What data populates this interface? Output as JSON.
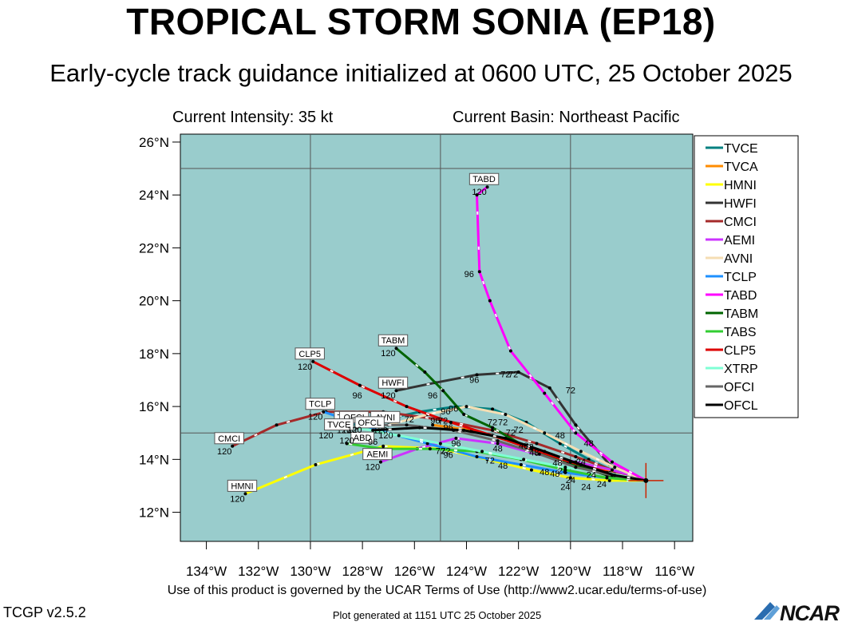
{
  "header": {
    "title": "TROPICAL STORM SONIA (EP18)",
    "subtitle": "Early-cycle track guidance initialized at 0600 UTC, 25 October 2025",
    "intensity": "Current Intensity: 35 kt",
    "basin": "Current Basin: Northeast Pacific"
  },
  "footer": {
    "terms": "Use of this product is governed by the UCAR Terms of Use (http://www2.ucar.edu/terms-of-use)",
    "version": "TCGP v2.5.2",
    "generated": "Plot generated at 1151 UTC   25 October 2025",
    "logo": "NCAR"
  },
  "colors": {
    "ocean": "#99cccc",
    "grid": "#555555"
  },
  "chart_data": {
    "type": "line",
    "xlim": [
      -135,
      -115.3
    ],
    "ylim": [
      10.9,
      26.3
    ],
    "x_ticks": [
      -134,
      -132,
      -130,
      -128,
      -126,
      -124,
      -122,
      -120,
      -118,
      -116
    ],
    "x_tick_labels": [
      "134°W",
      "132°W",
      "130°W",
      "128°W",
      "126°W",
      "124°W",
      "122°W",
      "120°W",
      "118°W",
      "116°W"
    ],
    "y_ticks": [
      12,
      14,
      16,
      18,
      20,
      22,
      24,
      26
    ],
    "y_tick_labels": [
      "12°N",
      "14°N",
      "16°N",
      "18°N",
      "20°N",
      "22°N",
      "24°N",
      "26°N"
    ],
    "grid_lon": [
      -130,
      -125,
      -120
    ],
    "grid_lat": [
      15,
      25
    ],
    "current_position": [
      -117.1,
      13.2
    ],
    "legend_position": "right",
    "series": [
      {
        "name": "TVCE",
        "color": "#008080",
        "end_label": "TVCE",
        "lon": [
          -117.1,
          -118.2,
          -119.3,
          -120.4,
          -121.7,
          -123.0,
          -124.4,
          -125.8,
          -127.2,
          -128.4
        ],
        "lat": [
          13.2,
          13.5,
          14.0,
          14.6,
          15.4,
          15.9,
          16.0,
          15.8,
          15.5,
          15.3
        ],
        "hour_labels": [
          {
            "t": "48",
            "lon": -120.4,
            "lat": 14.8
          },
          {
            "t": "72",
            "lon": -122.6,
            "lat": 15.3
          },
          {
            "t": "96",
            "lon": -124.8,
            "lat": 15.7
          }
        ]
      },
      {
        "name": "TVCA",
        "color": "#ff8c00",
        "end_label": "",
        "lon": [
          -117.1,
          -118.3,
          -119.6,
          -120.9,
          -122.3,
          -123.8,
          -125.3
        ],
        "lat": [
          13.2,
          13.5,
          13.8,
          14.2,
          14.7,
          15.1,
          15.3
        ],
        "hour_labels": []
      },
      {
        "name": "HMNI",
        "color": "#ffff00",
        "end_label": "HMNI",
        "lon": [
          -117.1,
          -118.5,
          -120.0,
          -121.5,
          -123.2,
          -125.0,
          -127.2,
          -129.8,
          -132.5
        ],
        "lat": [
          13.2,
          13.2,
          13.3,
          13.6,
          14.0,
          14.4,
          14.5,
          13.8,
          12.7
        ],
        "hour_labels": [
          {
            "t": "24",
            "lon": -120.0,
            "lat": 13.1
          },
          {
            "t": "72",
            "lon": -125.0,
            "lat": 14.2
          }
        ]
      },
      {
        "name": "HWFI",
        "color": "#333333",
        "end_label": "HWFI",
        "lon": [
          -117.1,
          -118.5,
          -119.8,
          -120.8,
          -122.0,
          -123.6,
          -125.2,
          -126.7
        ],
        "lat": [
          13.2,
          13.8,
          15.3,
          16.7,
          17.3,
          17.2,
          16.9,
          16.6
        ],
        "hour_labels": [
          {
            "t": "48",
            "lon": -119.3,
            "lat": 14.5
          },
          {
            "t": "72",
            "lon": -120.0,
            "lat": 16.5
          },
          {
            "t": "72",
            "lon": -122.5,
            "lat": 17.1
          },
          {
            "t": "96",
            "lon": -123.7,
            "lat": 16.9
          },
          {
            "t": "96",
            "lon": -125.3,
            "lat": 16.3
          }
        ]
      },
      {
        "name": "CMCI",
        "color": "#a52a2a",
        "end_label": "CMCI",
        "lon": [
          -117.1,
          -118.4,
          -119.8,
          -121.3,
          -123.0,
          -125.0,
          -127.2,
          -129.4,
          -131.3,
          -133.0
        ],
        "lat": [
          13.2,
          13.6,
          14.1,
          14.6,
          15.1,
          15.5,
          15.8,
          15.8,
          15.3,
          14.5
        ],
        "hour_labels": []
      },
      {
        "name": "AEMI",
        "color": "#cc33ff",
        "end_label": "AEMI",
        "lon": [
          -117.1,
          -118.4,
          -119.8,
          -121.3,
          -122.8,
          -124.4,
          -125.9,
          -127.3
        ],
        "lat": [
          13.2,
          13.6,
          13.9,
          14.2,
          14.6,
          14.8,
          14.4,
          13.9
        ],
        "hour_labels": [
          {
            "t": "96",
            "lon": -124.4,
            "lat": 14.5
          }
        ]
      },
      {
        "name": "AVNI",
        "color": "#f5deb3",
        "end_label": "AVNI",
        "lon": [
          -117.1,
          -118.3,
          -119.6,
          -121.0,
          -122.5,
          -124.0,
          -125.5,
          -127.0
        ],
        "lat": [
          13.2,
          13.7,
          14.3,
          15.0,
          15.7,
          16.0,
          15.7,
          15.3
        ],
        "hour_labels": [
          {
            "t": "72",
            "lon": -126.2,
            "lat": 15.4
          }
        ]
      },
      {
        "name": "TCLP",
        "color": "#1e90ff",
        "end_label": "TCLP",
        "lon": [
          -117.1,
          -118.6,
          -120.2,
          -121.9,
          -123.6,
          -125.5,
          -127.4,
          -129.5
        ],
        "lat": [
          13.2,
          13.3,
          13.5,
          13.8,
          14.1,
          14.6,
          15.1,
          15.8
        ],
        "hour_labels": []
      },
      {
        "name": "TABD",
        "color": "#ff00ff",
        "end_label": "TABD",
        "lon": [
          -117.1,
          -118.4,
          -119.8,
          -121.0,
          -122.3,
          -123.1,
          -123.5,
          -123.6,
          -123.2
        ],
        "lat": [
          13.2,
          13.9,
          15.0,
          16.5,
          18.1,
          20.0,
          21.1,
          24.0,
          24.3
        ],
        "hour_labels": [
          {
            "t": "96",
            "lon": -123.9,
            "lat": 20.9
          },
          {
            "t": "72",
            "lon": -122.2,
            "lat": 17.1
          }
        ]
      },
      {
        "name": "TABM",
        "color": "#006400",
        "end_label": "TABM",
        "lon": [
          -117.1,
          -118.6,
          -120.1,
          -121.6,
          -123.0,
          -124.1,
          -124.9,
          -125.6,
          -126.7
        ],
        "lat": [
          13.2,
          13.4,
          13.9,
          14.4,
          15.2,
          15.7,
          16.6,
          17.3,
          18.2
        ],
        "hour_labels": [
          {
            "t": "96",
            "lon": -124.5,
            "lat": 15.8
          }
        ]
      },
      {
        "name": "TABS",
        "color": "#32cd32",
        "end_label": "",
        "lon": [
          -117.1,
          -118.6,
          -120.2,
          -121.9,
          -123.6,
          -125.4,
          -127.2,
          -128.6
        ],
        "lat": [
          13.2,
          13.3,
          13.6,
          14.0,
          14.3,
          14.4,
          14.4,
          14.6
        ],
        "hour_labels": []
      },
      {
        "name": "CLP5",
        "color": "#dd0000",
        "end_label": "CLP5",
        "lon": [
          -117.1,
          -118.5,
          -120.0,
          -121.5,
          -123.0,
          -124.6,
          -126.3,
          -128.1,
          -129.9
        ],
        "lat": [
          13.2,
          13.5,
          13.9,
          14.4,
          14.9,
          15.4,
          16.0,
          16.8,
          17.7
        ],
        "hour_labels": [
          {
            "t": "96",
            "lon": -128.2,
            "lat": 16.3
          }
        ]
      },
      {
        "name": "XTRP",
        "color": "#7fffd4",
        "end_label": "",
        "lon": [
          -117.1,
          -118.6,
          -120.2,
          -121.8,
          -123.4,
          -125.0,
          -126.6,
          -128.2
        ],
        "lat": [
          13.2,
          13.5,
          13.7,
          14.0,
          14.3,
          14.6,
          14.9,
          15.2
        ],
        "hour_labels": []
      },
      {
        "name": "OFCI",
        "color": "#666666",
        "end_label": "OFCI",
        "lon": [
          -117.1,
          -118.4,
          -119.8,
          -121.2,
          -122.8,
          -124.5,
          -126.3,
          -128.2
        ],
        "lat": [
          13.2,
          13.4,
          13.7,
          14.2,
          14.7,
          15.1,
          15.3,
          15.3
        ],
        "hour_labels": []
      },
      {
        "name": "OFCL",
        "color": "#000000",
        "end_label": "OFCL",
        "lon": [
          -117.1,
          -118.3,
          -119.6,
          -121.0,
          -122.5,
          -124.1,
          -125.8,
          -127.6
        ],
        "lat": [
          13.2,
          13.4,
          13.8,
          14.3,
          14.8,
          15.1,
          15.2,
          15.1
        ],
        "hour_labels": []
      }
    ],
    "extra_labels": [
      {
        "t": "TVCE",
        "lon": -128.9,
        "lat": 15.2,
        "box": true
      },
      {
        "t": "ABD",
        "lon": -128.0,
        "lat": 14.7,
        "box": true
      },
      {
        "t": "120",
        "lon": -128.3,
        "lat": 15.0,
        "box": false
      },
      {
        "t": "120",
        "lon": -128.6,
        "lat": 14.6,
        "box": false
      },
      {
        "t": "96",
        "lon": -127.6,
        "lat": 14.55,
        "box": false
      },
      {
        "t": "120",
        "lon": -127.1,
        "lat": 14.8,
        "box": false
      },
      {
        "t": "120",
        "lon": -129.4,
        "lat": 14.8,
        "box": false
      },
      {
        "t": "96",
        "lon": -124.7,
        "lat": 15.1,
        "box": false
      },
      {
        "t": "96",
        "lon": -124.7,
        "lat": 14.05,
        "box": false
      },
      {
        "t": "72",
        "lon": -124.8,
        "lat": 14.2,
        "box": false
      },
      {
        "t": "48",
        "lon": -122.8,
        "lat": 14.3,
        "box": false
      },
      {
        "t": "72",
        "lon": -123.1,
        "lat": 13.85,
        "box": false
      },
      {
        "t": "48",
        "lon": -122.6,
        "lat": 13.65,
        "box": false
      },
      {
        "t": "72",
        "lon": -122.3,
        "lat": 14.9,
        "box": false
      },
      {
        "t": "72",
        "lon": -121.6,
        "lat": 14.35,
        "box": false
      },
      {
        "t": "48",
        "lon": -121.4,
        "lat": 14.15,
        "box": false
      },
      {
        "t": "48",
        "lon": -120.5,
        "lat": 13.75,
        "box": false
      },
      {
        "t": "48",
        "lon": -121.0,
        "lat": 13.4,
        "box": false
      },
      {
        "t": "48",
        "lon": -120.6,
        "lat": 13.35,
        "box": false
      },
      {
        "t": "24",
        "lon": -120.3,
        "lat": 13.45,
        "box": false
      },
      {
        "t": "24",
        "lon": -120.2,
        "lat": 12.85,
        "box": false
      },
      {
        "t": "24",
        "lon": -119.6,
        "lat": 13.8,
        "box": false
      },
      {
        "t": "24",
        "lon": -119.4,
        "lat": 12.85,
        "box": false
      },
      {
        "t": "24",
        "lon": -118.8,
        "lat": 12.95,
        "box": false
      },
      {
        "t": "24",
        "lon": -119.2,
        "lat": 13.3,
        "box": false
      },
      {
        "t": "72",
        "lon": -123.0,
        "lat": 15.3,
        "box": false
      },
      {
        "t": "72",
        "lon": -122.0,
        "lat": 15.0,
        "box": false
      },
      {
        "t": "48",
        "lon": -121.8,
        "lat": 14.4,
        "box": false
      },
      {
        "t": "72",
        "lon": -124.9,
        "lat": 15.35,
        "box": false
      },
      {
        "t": "96",
        "lon": -125.2,
        "lat": 15.35,
        "box": false
      }
    ]
  }
}
